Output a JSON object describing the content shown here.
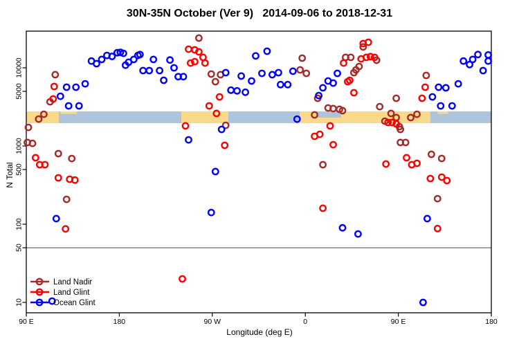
{
  "colors": {
    "land_nadir": "#A52A2A",
    "land_glint": "#FF0000",
    "ocean_glint": "#0000FF",
    "band_ocean": "#AEC4DC",
    "band_land": "#FBD98A",
    "reference_line": "#8C8C8C",
    "frame": "#000000"
  },
  "chart_data": {
    "type": "scatter",
    "title": "30N-35N October (Ver 9)   2014-09-06 to 2018-12-31",
    "xlabel": "Longitude (deg E)",
    "ylabel": "N Total",
    "y_scale": "log10",
    "y_range": [
      7,
      30000
    ],
    "x_axis_deg_range": [
      90,
      540
    ],
    "x_ticks": [
      {
        "deg": 90,
        "label": "90 E"
      },
      {
        "deg": 180,
        "label": "180"
      },
      {
        "deg": 270,
        "label": "90 W"
      },
      {
        "deg": 360,
        "label": "0"
      },
      {
        "deg": 450,
        "label": "90 E"
      },
      {
        "deg": 540,
        "label": "180"
      }
    ],
    "y_ticks": [
      10,
      50,
      100,
      500,
      1000,
      5000,
      10000
    ],
    "reference_line_n": 50,
    "grid": "off",
    "legend_position": "bottom-left",
    "map_band": {
      "n_range": [
        1960,
        2770
      ],
      "land_segments_deg": [
        [
          90,
          121.5
        ],
        [
          240,
          285.5
        ],
        [
          354.5,
          481
        ]
      ],
      "ocean_notch_deg": [
        371,
        394.5
      ],
      "island_specks_deg": [
        [
          123,
          139
        ],
        [
          488,
          498
        ]
      ]
    },
    "series": [
      {
        "name": "Land Nadir",
        "key": "land_nadir",
        "color": "#A52A2A",
        "points": [
          [
            118,
            8170
          ],
          [
            107,
            2550
          ],
          [
            102,
            2210
          ],
          [
            92,
            1730
          ],
          [
            91,
            1110
          ],
          [
            96,
            1080
          ],
          [
            121,
            800
          ],
          [
            134,
            692
          ],
          [
            113,
            3680
          ],
          [
            129,
            208
          ],
          [
            257,
            24000
          ],
          [
            269,
            8330
          ],
          [
            278,
            8170
          ],
          [
            273,
            6650
          ],
          [
            283,
            1840
          ],
          [
            357,
            13300
          ],
          [
            355,
            9400
          ],
          [
            361,
            8490
          ],
          [
            372,
            4080
          ],
          [
            369,
            2500
          ],
          [
            382,
            3070
          ],
          [
            387,
            3010
          ],
          [
            393,
            2950
          ],
          [
            396,
            2830
          ],
          [
            377,
            577
          ],
          [
            416,
            18500
          ],
          [
            399,
            13600
          ],
          [
            404,
            13600
          ],
          [
            429,
            12500
          ],
          [
            412,
            10400
          ],
          [
            409,
            9400
          ],
          [
            407,
            8670
          ],
          [
            432,
            3190
          ],
          [
            448,
            4080
          ],
          [
            443,
            2610
          ],
          [
            448,
            2310
          ],
          [
            437,
            2080
          ],
          [
            451,
            1770
          ],
          [
            462,
            2310
          ],
          [
            468,
            2550
          ],
          [
            477,
            8000
          ],
          [
            452,
            1630
          ],
          [
            452,
            1110
          ],
          [
            457,
            1110
          ],
          [
            482,
            783
          ],
          [
            492,
            693
          ],
          [
            488,
            212
          ]
        ]
      },
      {
        "name": "Land Glint",
        "key": "land_glint",
        "color": "#FF0000",
        "points": [
          [
            117,
            5770
          ],
          [
            116,
            4000
          ],
          [
            99,
            708
          ],
          [
            103,
            577
          ],
          [
            108,
            577
          ],
          [
            121,
            392
          ],
          [
            132,
            376
          ],
          [
            137,
            367
          ],
          [
            128,
            87
          ],
          [
            241,
            20
          ],
          [
            247,
            17300
          ],
          [
            253,
            17000
          ],
          [
            257,
            16000
          ],
          [
            261,
            13600
          ],
          [
            253,
            12000
          ],
          [
            249,
            11500
          ],
          [
            263,
            11500
          ],
          [
            277,
            4250
          ],
          [
            267,
            3260
          ],
          [
            274,
            2610
          ],
          [
            244,
            1810
          ],
          [
            282,
            1020
          ],
          [
            377,
            160
          ],
          [
            397,
            11500
          ],
          [
            414,
            13000
          ],
          [
            419,
            13600
          ],
          [
            423,
            13900
          ],
          [
            427,
            13600
          ],
          [
            416,
            20400
          ],
          [
            421,
            21200
          ],
          [
            403,
            6930
          ],
          [
            401,
            6650
          ],
          [
            407,
            4800
          ],
          [
            384,
            1810
          ],
          [
            369,
            1330
          ],
          [
            374,
            1410
          ],
          [
            387,
            1040
          ],
          [
            440,
            2000
          ],
          [
            444,
            2000
          ],
          [
            448,
            1920
          ],
          [
            473,
            4080
          ],
          [
            476,
            5650
          ],
          [
            458,
            708
          ],
          [
            463,
            577
          ],
          [
            468,
            601
          ],
          [
            438,
            589
          ],
          [
            481,
            384
          ],
          [
            492,
            400
          ],
          [
            497,
            361
          ],
          [
            488,
            88
          ]
        ]
      },
      {
        "name": "Ocean Glint",
        "key": "ocean_glint",
        "color": "#0000FF",
        "points": [
          [
            153,
            12200
          ],
          [
            158,
            11300
          ],
          [
            163,
            12800
          ],
          [
            168,
            14400
          ],
          [
            173,
            14000
          ],
          [
            178,
            15600
          ],
          [
            181,
            15800
          ],
          [
            184,
            15300
          ],
          [
            186,
            10800
          ],
          [
            189,
            11800
          ],
          [
            194,
            12800
          ],
          [
            198,
            14400
          ],
          [
            200,
            14800
          ],
          [
            203,
            9220
          ],
          [
            209,
            9220
          ],
          [
            213,
            12800
          ],
          [
            219,
            9220
          ],
          [
            223,
            6930
          ],
          [
            229,
            12600
          ],
          [
            233,
            10000
          ],
          [
            237,
            7700
          ],
          [
            242,
            7700
          ],
          [
            129,
            5650
          ],
          [
            138,
            5650
          ],
          [
            147,
            6250
          ],
          [
            123,
            4330
          ],
          [
            131,
            3260
          ],
          [
            141,
            3260
          ],
          [
            119,
            118
          ],
          [
            115,
            10.4
          ],
          [
            283,
            8670
          ],
          [
            298,
            7850
          ],
          [
            308,
            6790
          ],
          [
            312,
            14200
          ],
          [
            318,
            8490
          ],
          [
            288,
            5180
          ],
          [
            294,
            5070
          ],
          [
            302,
            4870
          ],
          [
            273,
            471
          ],
          [
            269,
            141
          ],
          [
            279,
            1630
          ],
          [
            247,
            1200
          ],
          [
            323,
            16300
          ],
          [
            328,
            8170
          ],
          [
            334,
            8670
          ],
          [
            348,
            9050
          ],
          [
            336,
            6100
          ],
          [
            343,
            6100
          ],
          [
            352,
            2210
          ],
          [
            377,
            5550
          ],
          [
            373,
            4420
          ],
          [
            382,
            6790
          ],
          [
            387,
            6390
          ],
          [
            391,
            8490
          ],
          [
            396,
            90
          ],
          [
            411,
            75
          ],
          [
            478,
            118
          ],
          [
            474,
            10
          ],
          [
            513,
            12200
          ],
          [
            519,
            11000
          ],
          [
            522,
            12800
          ],
          [
            527,
            14800
          ],
          [
            537,
            14600
          ],
          [
            537,
            12200
          ],
          [
            532,
            9220
          ],
          [
            508,
            6250
          ],
          [
            496,
            5550
          ],
          [
            489,
            5650
          ],
          [
            483,
            4250
          ],
          [
            491,
            3260
          ],
          [
            502,
            3260
          ]
        ]
      }
    ]
  }
}
